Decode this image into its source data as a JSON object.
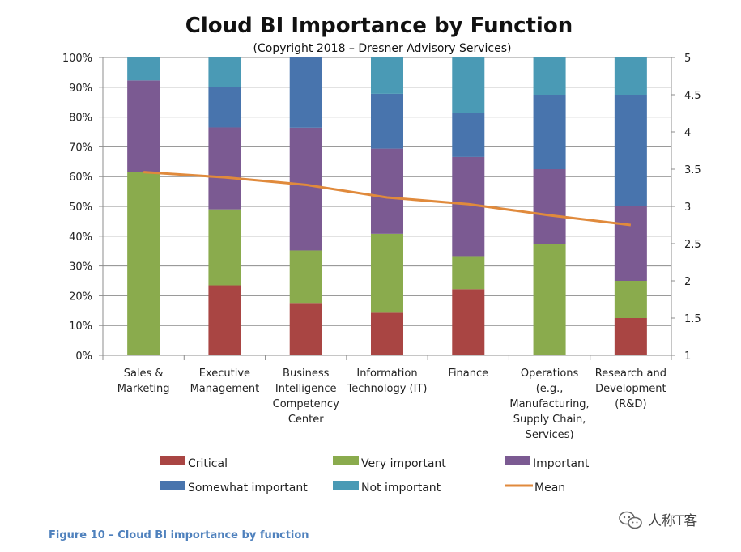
{
  "chart_data": {
    "type": "bar",
    "stacked": true,
    "title": "Cloud BI Importance by Function",
    "subtitle": "(Copyright 2018 – Dresner Advisory Services)",
    "categories": [
      [
        "Sales &",
        "Marketing"
      ],
      [
        "Executive",
        "Management"
      ],
      [
        "Business",
        "Intelligence",
        "Competency",
        "Center"
      ],
      [
        "Information",
        "Technology (IT)"
      ],
      [
        "Finance"
      ],
      [
        "Operations",
        "(e.g.,",
        "Manufacturing,",
        "Supply Chain,",
        "Services)"
      ],
      [
        "Research and",
        "Development",
        "(R&D)"
      ]
    ],
    "series": [
      {
        "name": "Critical",
        "color": "#a94543",
        "values": [
          0,
          23.5,
          17.6,
          14.3,
          22.2,
          0,
          12.5
        ]
      },
      {
        "name": "Very important",
        "color": "#8aab4d",
        "values": [
          61.5,
          25.5,
          17.6,
          26.5,
          11.1,
          37.5,
          12.5
        ]
      },
      {
        "name": "Important",
        "color": "#7b5a92",
        "values": [
          30.8,
          27.5,
          41.2,
          28.6,
          33.3,
          25.0,
          25.0
        ]
      },
      {
        "name": "Somewhat important",
        "color": "#4874ad",
        "values": [
          0,
          13.7,
          23.6,
          18.4,
          14.8,
          25.0,
          37.5
        ]
      },
      {
        "name": "Not important",
        "color": "#4a9ab5",
        "values": [
          7.7,
          9.8,
          0,
          12.2,
          18.6,
          12.5,
          12.5
        ]
      }
    ],
    "mean": {
      "name": "Mean",
      "color": "#e08a3c",
      "values": [
        3.46,
        3.39,
        3.29,
        3.12,
        3.03,
        2.88,
        2.75
      ]
    },
    "y_left": {
      "min": 0,
      "max": 100,
      "ticks": [
        "0%",
        "10%",
        "20%",
        "30%",
        "40%",
        "50%",
        "60%",
        "70%",
        "80%",
        "90%",
        "100%"
      ]
    },
    "y_right": {
      "min": 1,
      "max": 5,
      "ticks": [
        "1",
        "1.5",
        "2",
        "2.5",
        "3",
        "3.5",
        "4",
        "4.5",
        "5"
      ]
    },
    "grid": true,
    "legend_position": "bottom"
  },
  "caption": "Figure 10 – Cloud BI importance by function",
  "watermark": "人称T客"
}
